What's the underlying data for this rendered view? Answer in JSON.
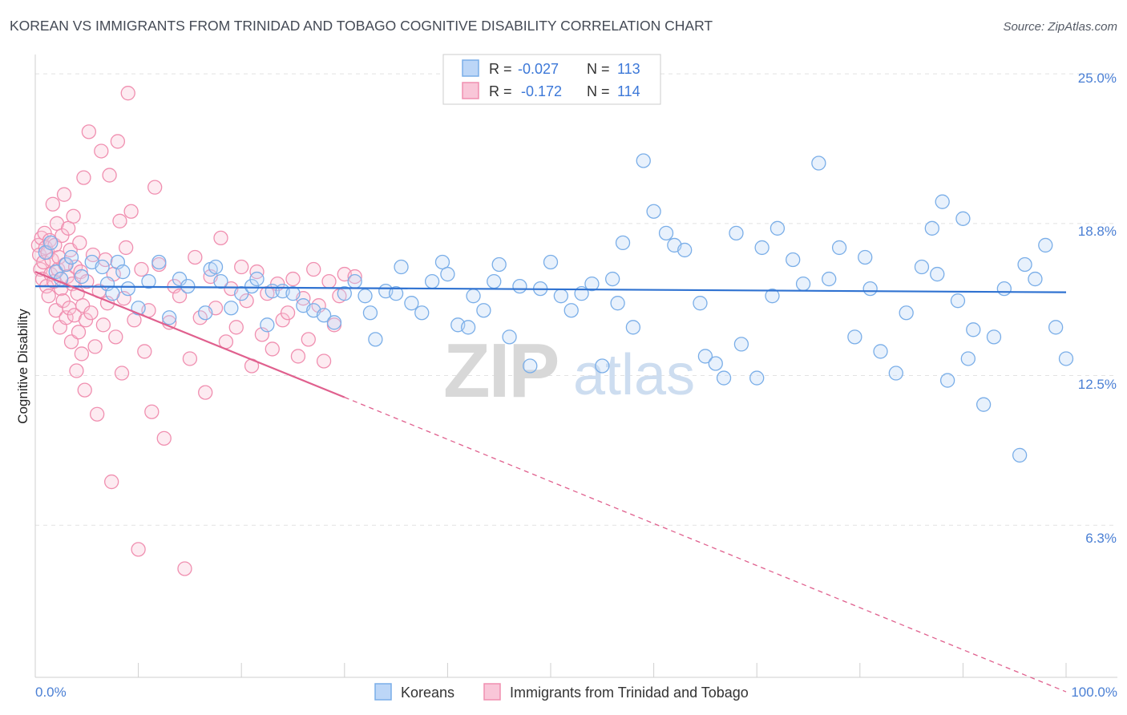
{
  "chart_data": {
    "type": "scatter",
    "title": "KOREAN VS IMMIGRANTS FROM TRINIDAD AND TOBAGO COGNITIVE DISABILITY CORRELATION CHART",
    "source": "Source: ZipAtlas.com",
    "ylabel": "Cognitive Disability",
    "xlabel": "",
    "xlim": [
      0,
      100
    ],
    "ylim": [
      0,
      25.8
    ],
    "x_tick_labels": {
      "min": "0.0%",
      "max": "100.0%"
    },
    "y_ticks": [
      {
        "value": 25.0,
        "label": "25.0%"
      },
      {
        "value": 18.8,
        "label": "18.8%"
      },
      {
        "value": 12.5,
        "label": "12.5%"
      },
      {
        "value": 6.3,
        "label": "6.3%"
      }
    ],
    "watermark": {
      "zip": "ZIP",
      "atlas": "atlas"
    },
    "legend": {
      "r_label": "R =",
      "n_label": "N =",
      "entries": [
        {
          "r": "-0.027",
          "n": "113"
        },
        {
          "r": "-0.172",
          "n": "114"
        }
      ]
    },
    "series": [
      {
        "name": "Koreans",
        "color": "#7aaee8",
        "line_color": "#2f72d1",
        "trend": {
          "x0": 0,
          "y0": 16.2,
          "x1": 100,
          "y1": 15.95
        },
        "points": [
          [
            1,
            17.6
          ],
          [
            1.5,
            18
          ],
          [
            2,
            16.8
          ],
          [
            2.5,
            16.5
          ],
          [
            3,
            17.1
          ],
          [
            3.5,
            17.4
          ],
          [
            4.5,
            16.6
          ],
          [
            5.5,
            17.2
          ],
          [
            6.5,
            17
          ],
          [
            7,
            16.3
          ],
          [
            7.5,
            15.9
          ],
          [
            8,
            17.2
          ],
          [
            8.5,
            16.8
          ],
          [
            9,
            16.1
          ],
          [
            10,
            15.3
          ],
          [
            11,
            16.4
          ],
          [
            12,
            17.2
          ],
          [
            13,
            14.9
          ],
          [
            14,
            16.5
          ],
          [
            14.8,
            16.2
          ],
          [
            16.5,
            15.1
          ],
          [
            17,
            16.9
          ],
          [
            17.5,
            17
          ],
          [
            18,
            16.4
          ],
          [
            19,
            15.3
          ],
          [
            20,
            15.9
          ],
          [
            21,
            16.2
          ],
          [
            21.5,
            16.5
          ],
          [
            22.5,
            14.6
          ],
          [
            23,
            16
          ],
          [
            24,
            16
          ],
          [
            25,
            15.9
          ],
          [
            26,
            15.4
          ],
          [
            27,
            15.2
          ],
          [
            28,
            15
          ],
          [
            29,
            14.7
          ],
          [
            30,
            15.9
          ],
          [
            31,
            16.4
          ],
          [
            32,
            15.8
          ],
          [
            32.5,
            15.1
          ],
          [
            33,
            14
          ],
          [
            34,
            16
          ],
          [
            35,
            15.9
          ],
          [
            35.5,
            17
          ],
          [
            36.5,
            15.5
          ],
          [
            37.5,
            15.1
          ],
          [
            38.5,
            16.4
          ],
          [
            39.5,
            17.2
          ],
          [
            40,
            16.7
          ],
          [
            41,
            14.6
          ],
          [
            42,
            14.5
          ],
          [
            42.5,
            15.8
          ],
          [
            43.5,
            15.2
          ],
          [
            44.5,
            16.4
          ],
          [
            45,
            17.1
          ],
          [
            46,
            14.1
          ],
          [
            47,
            16.2
          ],
          [
            48,
            12.9
          ],
          [
            49,
            16.1
          ],
          [
            50,
            17.2
          ],
          [
            51,
            15.8
          ],
          [
            52,
            15.2
          ],
          [
            53,
            15.9
          ],
          [
            54,
            16.3
          ],
          [
            55,
            12.9
          ],
          [
            56,
            16.5
          ],
          [
            56.5,
            15.5
          ],
          [
            57,
            18
          ],
          [
            58,
            14.5
          ],
          [
            59,
            21.4
          ],
          [
            60,
            19.3
          ],
          [
            61.2,
            18.4
          ],
          [
            62,
            17.9
          ],
          [
            63,
            17.7
          ],
          [
            64.5,
            15.5
          ],
          [
            65,
            13.3
          ],
          [
            66,
            13
          ],
          [
            66.8,
            12.4
          ],
          [
            68,
            18.4
          ],
          [
            68.5,
            13.8
          ],
          [
            70,
            12.4
          ],
          [
            70.5,
            17.8
          ],
          [
            71.5,
            15.8
          ],
          [
            72,
            18.6
          ],
          [
            73.5,
            17.3
          ],
          [
            74.5,
            16.3
          ],
          [
            76,
            21.3
          ],
          [
            77,
            16.5
          ],
          [
            78,
            17.8
          ],
          [
            79.5,
            14.1
          ],
          [
            80.5,
            17.4
          ],
          [
            81,
            16.1
          ],
          [
            82,
            13.5
          ],
          [
            83.5,
            12.6
          ],
          [
            84.5,
            15.1
          ],
          [
            86,
            17
          ],
          [
            87.5,
            16.7
          ],
          [
            88.5,
            12.3
          ],
          [
            89.5,
            15.6
          ],
          [
            90.5,
            13.2
          ],
          [
            91,
            14.4
          ],
          [
            92,
            11.3
          ],
          [
            93,
            14.1
          ],
          [
            94,
            16.1
          ],
          [
            95.5,
            9.2
          ],
          [
            96,
            17.1
          ],
          [
            97,
            16.5
          ],
          [
            98,
            17.9
          ],
          [
            99,
            14.5
          ],
          [
            100,
            13.2
          ],
          [
            88,
            19.7
          ],
          [
            90,
            19
          ],
          [
            87,
            18.6
          ]
        ]
      },
      {
        "name": "Immigrants from Trinidad and Tobago",
        "color": "#f08fb0",
        "line_color": "#e0608e",
        "trend": {
          "x0": 0,
          "y0": 16.8,
          "x1": 30,
          "y1": 11.6
        },
        "trend_dash": {
          "x0": 30,
          "y0": 11.6,
          "x1": 100,
          "y1": -0.6
        },
        "points": [
          [
            0.3,
            17.9
          ],
          [
            0.4,
            17.5
          ],
          [
            0.5,
            16.9
          ],
          [
            0.6,
            18.2
          ],
          [
            0.7,
            16.5
          ],
          [
            0.8,
            17.2
          ],
          [
            0.9,
            18.4
          ],
          [
            1,
            17.8
          ],
          [
            1.1,
            16.2
          ],
          [
            1.2,
            17.6
          ],
          [
            1.3,
            15.8
          ],
          [
            1.4,
            18.1
          ],
          [
            1.5,
            16.7
          ],
          [
            1.6,
            17.3
          ],
          [
            1.7,
            19.6
          ],
          [
            1.8,
            16.4
          ],
          [
            1.9,
            17.9
          ],
          [
            2,
            15.2
          ],
          [
            2.1,
            18.8
          ],
          [
            2.2,
            16.9
          ],
          [
            2.3,
            17.4
          ],
          [
            2.4,
            14.5
          ],
          [
            2.5,
            16.1
          ],
          [
            2.6,
            18.3
          ],
          [
            2.7,
            15.6
          ],
          [
            2.8,
            20
          ],
          [
            2.9,
            17.1
          ],
          [
            3,
            14.9
          ],
          [
            3.1,
            16.6
          ],
          [
            3.2,
            18.6
          ],
          [
            3.3,
            15.3
          ],
          [
            3.4,
            17.7
          ],
          [
            3.5,
            13.9
          ],
          [
            3.6,
            16.3
          ],
          [
            3.7,
            19.1
          ],
          [
            3.8,
            15
          ],
          [
            3.9,
            17
          ],
          [
            4,
            12.7
          ],
          [
            4.1,
            15.9
          ],
          [
            4.2,
            14.3
          ],
          [
            4.3,
            18
          ],
          [
            4.4,
            16.8
          ],
          [
            4.5,
            13.4
          ],
          [
            4.6,
            15.4
          ],
          [
            4.7,
            20.7
          ],
          [
            4.8,
            11.9
          ],
          [
            4.9,
            14.8
          ],
          [
            5,
            16.4
          ],
          [
            5.2,
            22.6
          ],
          [
            5.4,
            15.1
          ],
          [
            5.6,
            17.5
          ],
          [
            5.8,
            13.7
          ],
          [
            6,
            10.9
          ],
          [
            6.2,
            16
          ],
          [
            6.4,
            21.8
          ],
          [
            6.6,
            14.6
          ],
          [
            6.8,
            17.3
          ],
          [
            7,
            15.5
          ],
          [
            7.2,
            20.8
          ],
          [
            7.4,
            8.1
          ],
          [
            7.6,
            16.7
          ],
          [
            7.8,
            14.1
          ],
          [
            8,
            22.2
          ],
          [
            8.2,
            18.9
          ],
          [
            8.4,
            12.6
          ],
          [
            8.6,
            15.7
          ],
          [
            8.8,
            17.8
          ],
          [
            9,
            24.2
          ],
          [
            9.3,
            19.3
          ],
          [
            9.6,
            14.8
          ],
          [
            10,
            5.3
          ],
          [
            10.3,
            16.9
          ],
          [
            10.6,
            13.5
          ],
          [
            11,
            15.2
          ],
          [
            11.3,
            11
          ],
          [
            11.6,
            20.3
          ],
          [
            12,
            17.1
          ],
          [
            12.5,
            9.9
          ],
          [
            13,
            14.7
          ],
          [
            13.5,
            16.2
          ],
          [
            14,
            15.8
          ],
          [
            14.5,
            4.5
          ],
          [
            15,
            13.2
          ],
          [
            15.5,
            17.4
          ],
          [
            16,
            14.9
          ],
          [
            16.5,
            11.8
          ],
          [
            17,
            16.6
          ],
          [
            17.5,
            15.3
          ],
          [
            18,
            18.2
          ],
          [
            18.5,
            13.9
          ],
          [
            19,
            16.1
          ],
          [
            19.5,
            14.5
          ],
          [
            20,
            17
          ],
          [
            20.5,
            15.6
          ],
          [
            21,
            12.9
          ],
          [
            21.5,
            16.8
          ],
          [
            22,
            14.2
          ],
          [
            22.5,
            15.9
          ],
          [
            23,
            13.6
          ],
          [
            23.5,
            16.3
          ],
          [
            24,
            14.8
          ],
          [
            24.5,
            15.1
          ],
          [
            25,
            16.5
          ],
          [
            25.5,
            13.3
          ],
          [
            26,
            15.7
          ],
          [
            26.5,
            14
          ],
          [
            27,
            16.9
          ],
          [
            27.5,
            15.4
          ],
          [
            28,
            13.1
          ],
          [
            28.5,
            16.4
          ],
          [
            29,
            14.6
          ],
          [
            29.5,
            15.8
          ],
          [
            30,
            16.7
          ],
          [
            31,
            16.6
          ]
        ]
      }
    ]
  }
}
